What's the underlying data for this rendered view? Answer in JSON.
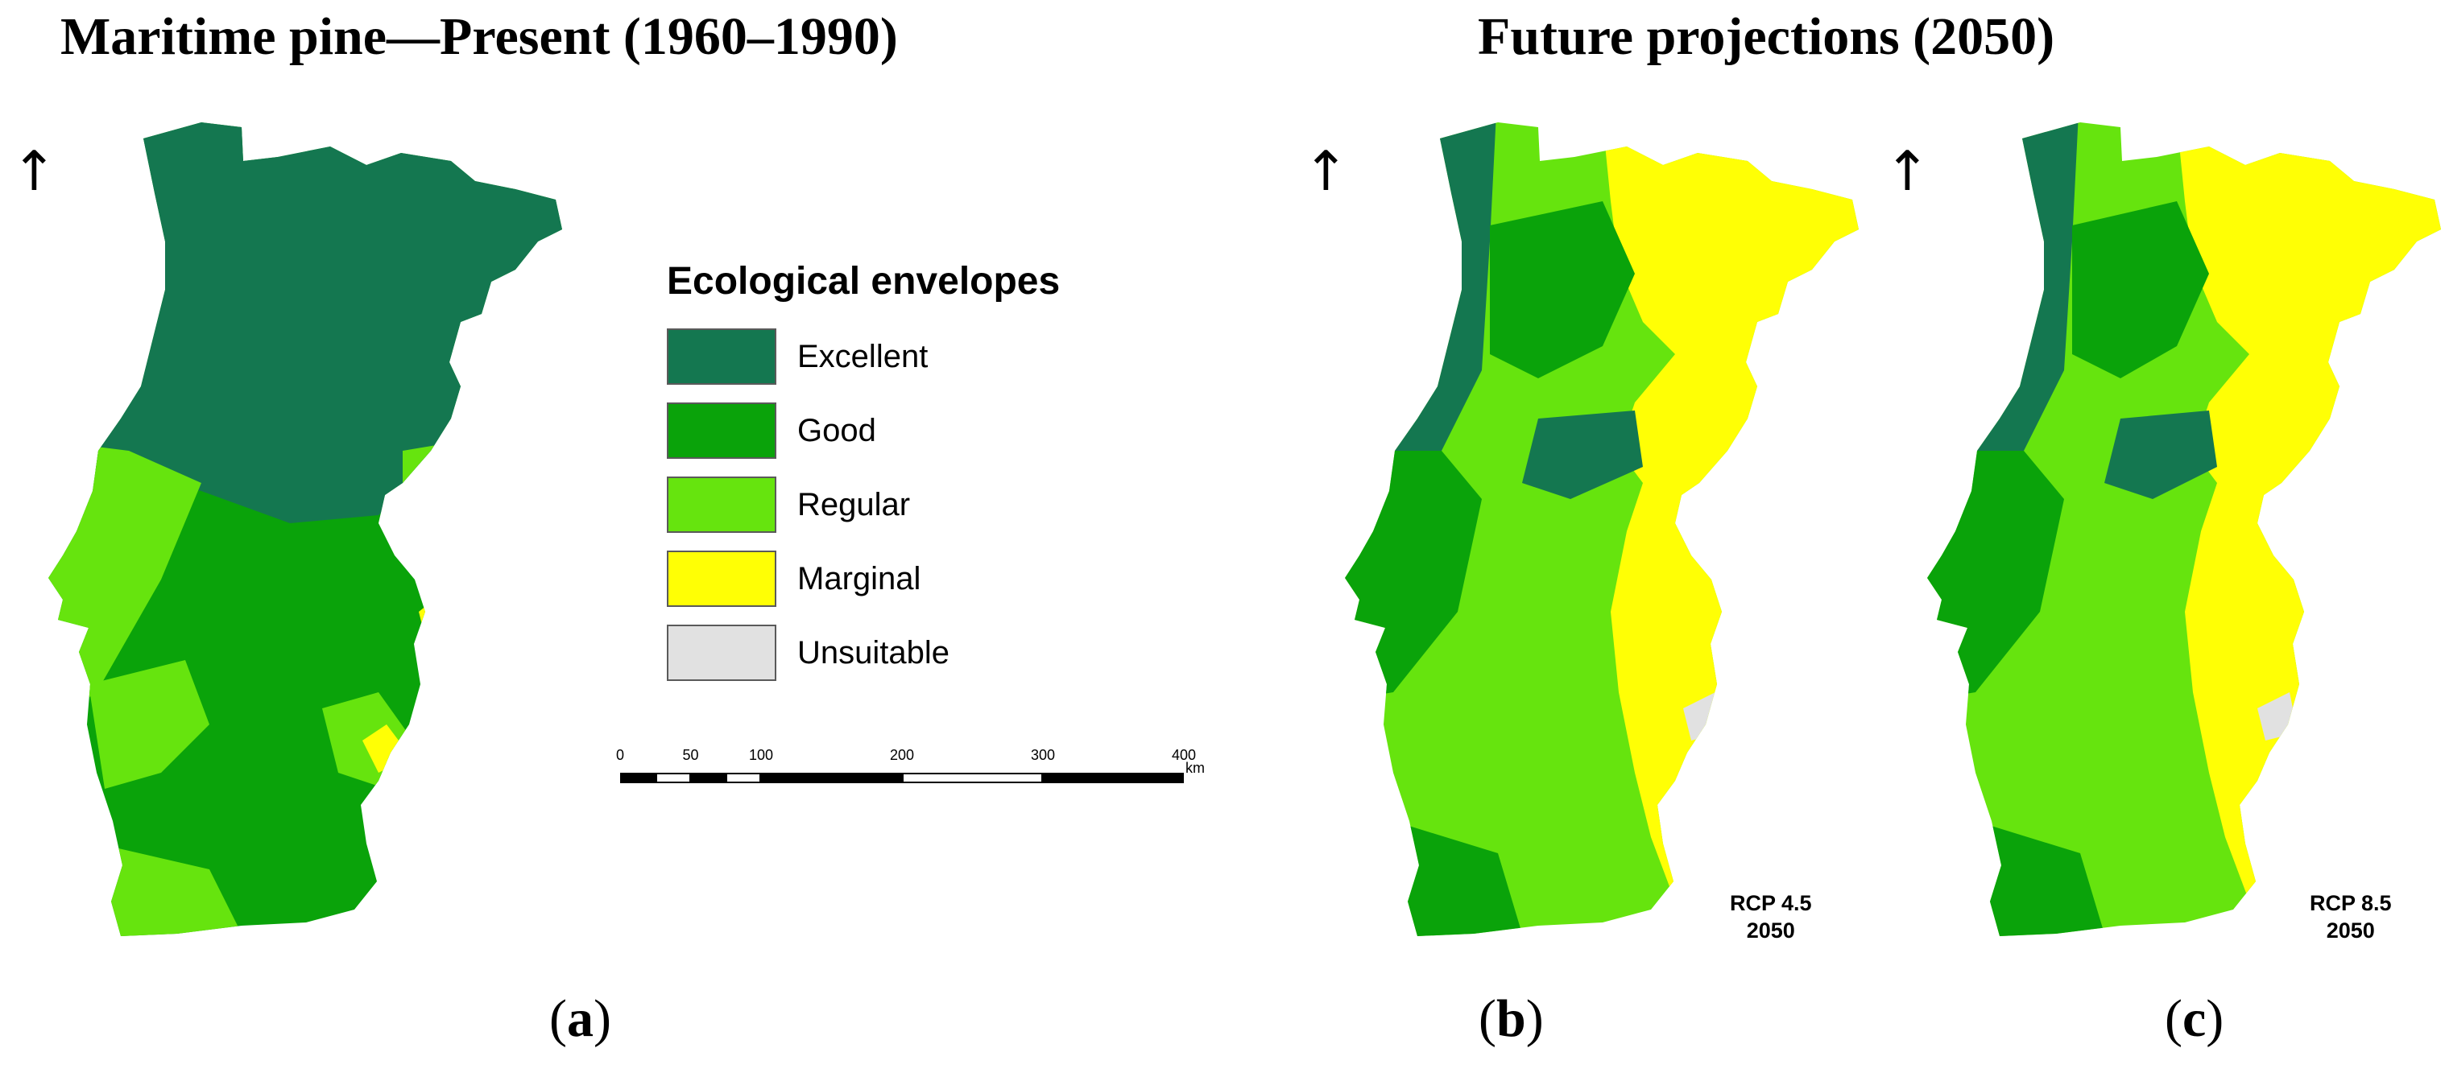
{
  "titles": {
    "left": "Maritime pine—Present (1960–1990)",
    "right": "Future projections (2050)"
  },
  "north_arrow": "↑",
  "panels": [
    {
      "id": "a",
      "label_open": "(",
      "label_letter": "a",
      "label_close": ")"
    },
    {
      "id": "b",
      "label_open": "(",
      "label_letter": "b",
      "label_close": ")",
      "scenario_line1": "RCP 4.5",
      "scenario_line2": "2050"
    },
    {
      "id": "c",
      "label_open": "(",
      "label_letter": "c",
      "label_close": ")",
      "scenario_line1": "RCP 8.5",
      "scenario_line2": "2050"
    }
  ],
  "legend": {
    "title": "Ecological envelopes",
    "items": [
      {
        "label": "Excellent",
        "color": "#147750"
      },
      {
        "label": "Good",
        "color": "#0aa30a"
      },
      {
        "label": "Regular",
        "color": "#66e40e"
      },
      {
        "label": "Marginal",
        "color": "#ffff05"
      },
      {
        "label": "Unsuitable",
        "color": "#e1e1e1"
      }
    ]
  },
  "scale_bar": {
    "ticks": [
      "0",
      "50",
      "100",
      "200",
      "300",
      "400"
    ],
    "tick_values": [
      0,
      50,
      100,
      200,
      300,
      400
    ],
    "unit": "km"
  }
}
